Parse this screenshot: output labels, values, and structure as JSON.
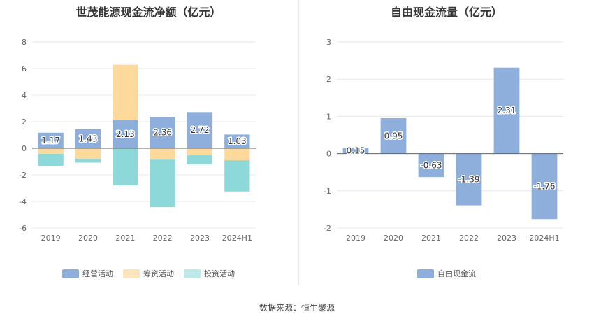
{
  "source": "数据来源：恒生聚源",
  "chart_data": [
    {
      "type": "bar",
      "stacked": true,
      "title": "世茂能源现金流净额（亿元）",
      "categories": [
        "2019",
        "2020",
        "2021",
        "2022",
        "2023",
        "2024H1"
      ],
      "ylim": [
        -6,
        8
      ],
      "yticks": [
        -6,
        -4,
        -2,
        0,
        2,
        4,
        6,
        8
      ],
      "grid": true,
      "legend_position": "bottom",
      "series": [
        {
          "name": "经营活动",
          "color": "#8eaedc",
          "values": [
            1.17,
            1.43,
            2.13,
            2.36,
            2.72,
            1.03
          ],
          "labels": [
            "1.17",
            "1.43",
            "2.13",
            "2.36",
            "2.72",
            "1.03"
          ]
        },
        {
          "name": "筹资活动",
          "color": "#fdd99b",
          "values": [
            -0.42,
            -0.78,
            4.15,
            -0.85,
            -0.52,
            -0.9
          ]
        },
        {
          "name": "投资活动",
          "color": "#8dd8d8",
          "values": [
            -0.9,
            -0.3,
            -2.78,
            -3.58,
            -0.68,
            -2.35
          ]
        }
      ]
    },
    {
      "type": "bar",
      "title": "自由现金流量（亿元）",
      "categories": [
        "2019",
        "2020",
        "2021",
        "2022",
        "2023",
        "2024H1"
      ],
      "ylim": [
        -2,
        3
      ],
      "yticks": [
        -2,
        -1,
        0,
        1,
        2,
        3
      ],
      "grid": true,
      "legend_position": "bottom",
      "series": [
        {
          "name": "自由现金流",
          "color": "#8eaedc",
          "values": [
            0.15,
            0.95,
            -0.63,
            -1.39,
            2.31,
            -1.76
          ],
          "labels": [
            "0.15",
            "0.95",
            "-0.63",
            "-1.39",
            "2.31",
            "-1.76"
          ]
        }
      ]
    }
  ]
}
